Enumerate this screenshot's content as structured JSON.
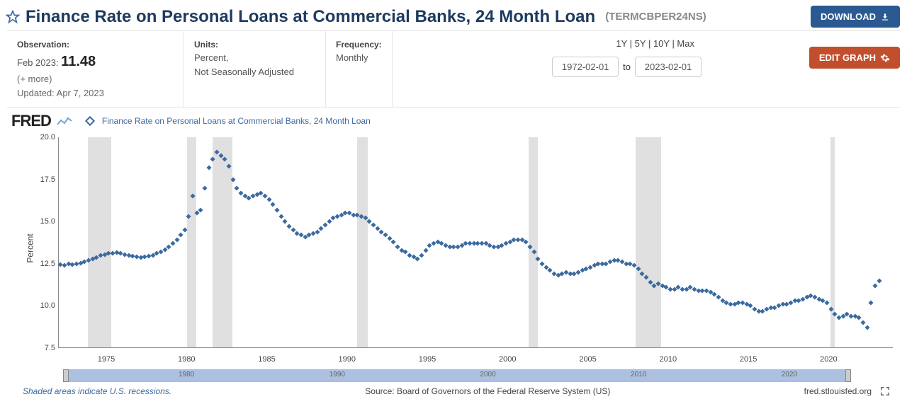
{
  "header": {
    "title": "Finance Rate on Personal Loans at Commercial Banks, 24 Month Loan",
    "series_id": "(TERMCBPER24NS)",
    "download_label": "DOWNLOAD"
  },
  "info": {
    "observation_label": "Observation:",
    "observation_date": "Feb 2023:",
    "observation_value": "11.48",
    "more_text": "(+ more)",
    "updated_text": "Updated: Apr 7, 2023",
    "units_label": "Units:",
    "units_line1": "Percent,",
    "units_line2": "Not Seasonally Adjusted",
    "frequency_label": "Frequency:",
    "frequency_value": "Monthly",
    "range_links": "1Y | 5Y | 10Y | Max",
    "date_from": "1972-02-01",
    "date_to": "2023-02-01",
    "to_label": "to",
    "edit_graph_label": "EDIT GRAPH"
  },
  "chart": {
    "type": "scatter",
    "legend_text": "Finance Rate on Personal Loans at Commercial Banks, 24 Month Loan",
    "ylabel": "Percent",
    "ylim": [
      7.5,
      20.0
    ],
    "ytick_step": 2.5,
    "yticks": [
      "7.5",
      "10.0",
      "12.5",
      "15.0",
      "17.5",
      "20.0"
    ],
    "xlim": [
      1972,
      2024
    ],
    "xticks": [
      1975,
      1980,
      1985,
      1990,
      1995,
      2000,
      2005,
      2010,
      2015,
      2020
    ],
    "marker_color": "#3b6aa0",
    "marker_style": "diamond",
    "marker_size": 5,
    "background_color": "#ffffff",
    "recession_color": "#e0e0e0",
    "axis_color": "#888888",
    "title_fontsize": 24,
    "label_fontsize": 12,
    "tick_fontsize": 11,
    "recessions": [
      [
        1973.83,
        1975.25
      ],
      [
        1980.0,
        1980.58
      ],
      [
        1981.58,
        1982.83
      ],
      [
        1990.58,
        1991.25
      ],
      [
        2001.25,
        2001.83
      ],
      [
        2007.92,
        2009.5
      ],
      [
        2020.08,
        2020.33
      ]
    ],
    "points": [
      [
        1972.1,
        12.45
      ],
      [
        1972.35,
        12.4
      ],
      [
        1972.6,
        12.5
      ],
      [
        1972.85,
        12.45
      ],
      [
        1973.1,
        12.5
      ],
      [
        1973.35,
        12.55
      ],
      [
        1973.6,
        12.6
      ],
      [
        1973.85,
        12.7
      ],
      [
        1974.1,
        12.8
      ],
      [
        1974.35,
        12.85
      ],
      [
        1974.6,
        13.0
      ],
      [
        1974.85,
        13.05
      ],
      [
        1975.1,
        13.1
      ],
      [
        1975.35,
        13.1
      ],
      [
        1975.6,
        13.15
      ],
      [
        1975.85,
        13.1
      ],
      [
        1976.1,
        13.05
      ],
      [
        1976.35,
        13.0
      ],
      [
        1976.6,
        12.95
      ],
      [
        1976.85,
        12.9
      ],
      [
        1977.1,
        12.85
      ],
      [
        1977.35,
        12.9
      ],
      [
        1977.6,
        12.95
      ],
      [
        1977.85,
        13.0
      ],
      [
        1978.1,
        13.1
      ],
      [
        1978.35,
        13.2
      ],
      [
        1978.6,
        13.35
      ],
      [
        1978.85,
        13.5
      ],
      [
        1979.1,
        13.7
      ],
      [
        1979.35,
        13.9
      ],
      [
        1979.6,
        14.2
      ],
      [
        1979.85,
        14.5
      ],
      [
        1980.1,
        15.3
      ],
      [
        1980.35,
        16.5
      ],
      [
        1980.6,
        15.5
      ],
      [
        1980.85,
        15.7
      ],
      [
        1981.1,
        17.0
      ],
      [
        1981.35,
        18.2
      ],
      [
        1981.6,
        18.7
      ],
      [
        1981.85,
        19.1
      ],
      [
        1982.1,
        18.9
      ],
      [
        1982.35,
        18.7
      ],
      [
        1982.6,
        18.3
      ],
      [
        1982.85,
        17.5
      ],
      [
        1983.1,
        17.0
      ],
      [
        1983.35,
        16.7
      ],
      [
        1983.6,
        16.5
      ],
      [
        1983.85,
        16.4
      ],
      [
        1984.1,
        16.5
      ],
      [
        1984.35,
        16.6
      ],
      [
        1984.6,
        16.7
      ],
      [
        1984.85,
        16.5
      ],
      [
        1985.1,
        16.3
      ],
      [
        1985.35,
        16.0
      ],
      [
        1985.6,
        15.7
      ],
      [
        1985.85,
        15.3
      ],
      [
        1986.1,
        15.0
      ],
      [
        1986.35,
        14.7
      ],
      [
        1986.6,
        14.5
      ],
      [
        1986.85,
        14.3
      ],
      [
        1987.1,
        14.2
      ],
      [
        1987.35,
        14.1
      ],
      [
        1987.6,
        14.2
      ],
      [
        1987.85,
        14.3
      ],
      [
        1988.1,
        14.4
      ],
      [
        1988.35,
        14.6
      ],
      [
        1988.6,
        14.8
      ],
      [
        1988.85,
        15.0
      ],
      [
        1989.1,
        15.2
      ],
      [
        1989.35,
        15.3
      ],
      [
        1989.6,
        15.4
      ],
      [
        1989.85,
        15.5
      ],
      [
        1990.1,
        15.5
      ],
      [
        1990.35,
        15.4
      ],
      [
        1990.6,
        15.4
      ],
      [
        1990.85,
        15.3
      ],
      [
        1991.1,
        15.2
      ],
      [
        1991.35,
        15.0
      ],
      [
        1991.6,
        14.8
      ],
      [
        1991.85,
        14.6
      ],
      [
        1992.1,
        14.4
      ],
      [
        1992.35,
        14.2
      ],
      [
        1992.6,
        14.0
      ],
      [
        1992.85,
        13.8
      ],
      [
        1993.1,
        13.5
      ],
      [
        1993.35,
        13.3
      ],
      [
        1993.6,
        13.2
      ],
      [
        1993.85,
        13.0
      ],
      [
        1994.1,
        12.9
      ],
      [
        1994.35,
        12.8
      ],
      [
        1994.6,
        13.0
      ],
      [
        1994.85,
        13.3
      ],
      [
        1995.1,
        13.6
      ],
      [
        1995.35,
        13.7
      ],
      [
        1995.6,
        13.8
      ],
      [
        1995.85,
        13.7
      ],
      [
        1996.1,
        13.6
      ],
      [
        1996.35,
        13.5
      ],
      [
        1996.6,
        13.5
      ],
      [
        1996.85,
        13.5
      ],
      [
        1997.1,
        13.6
      ],
      [
        1997.35,
        13.7
      ],
      [
        1997.6,
        13.7
      ],
      [
        1997.85,
        13.7
      ],
      [
        1998.1,
        13.7
      ],
      [
        1998.35,
        13.7
      ],
      [
        1998.6,
        13.7
      ],
      [
        1998.85,
        13.6
      ],
      [
        1999.1,
        13.5
      ],
      [
        1999.35,
        13.5
      ],
      [
        1999.6,
        13.6
      ],
      [
        1999.85,
        13.7
      ],
      [
        2000.1,
        13.8
      ],
      [
        2000.35,
        13.9
      ],
      [
        2000.6,
        13.9
      ],
      [
        2000.85,
        13.9
      ],
      [
        2001.1,
        13.8
      ],
      [
        2001.35,
        13.5
      ],
      [
        2001.6,
        13.2
      ],
      [
        2001.85,
        12.8
      ],
      [
        2002.1,
        12.5
      ],
      [
        2002.35,
        12.3
      ],
      [
        2002.6,
        12.1
      ],
      [
        2002.85,
        11.9
      ],
      [
        2003.1,
        11.8
      ],
      [
        2003.35,
        11.9
      ],
      [
        2003.6,
        12.0
      ],
      [
        2003.85,
        11.9
      ],
      [
        2004.1,
        11.9
      ],
      [
        2004.35,
        12.0
      ],
      [
        2004.6,
        12.1
      ],
      [
        2004.85,
        12.2
      ],
      [
        2005.1,
        12.3
      ],
      [
        2005.35,
        12.4
      ],
      [
        2005.6,
        12.5
      ],
      [
        2005.85,
        12.5
      ],
      [
        2006.1,
        12.5
      ],
      [
        2006.35,
        12.6
      ],
      [
        2006.6,
        12.7
      ],
      [
        2006.85,
        12.7
      ],
      [
        2007.1,
        12.6
      ],
      [
        2007.35,
        12.5
      ],
      [
        2007.6,
        12.5
      ],
      [
        2007.85,
        12.4
      ],
      [
        2008.1,
        12.2
      ],
      [
        2008.35,
        11.9
      ],
      [
        2008.6,
        11.7
      ],
      [
        2008.85,
        11.4
      ],
      [
        2009.1,
        11.2
      ],
      [
        2009.35,
        11.3
      ],
      [
        2009.6,
        11.2
      ],
      [
        2009.85,
        11.1
      ],
      [
        2010.1,
        11.0
      ],
      [
        2010.35,
        11.0
      ],
      [
        2010.6,
        11.1
      ],
      [
        2010.85,
        11.0
      ],
      [
        2011.1,
        11.0
      ],
      [
        2011.35,
        11.1
      ],
      [
        2011.6,
        11.0
      ],
      [
        2011.85,
        10.9
      ],
      [
        2012.1,
        10.9
      ],
      [
        2012.35,
        10.9
      ],
      [
        2012.6,
        10.8
      ],
      [
        2012.85,
        10.7
      ],
      [
        2013.1,
        10.5
      ],
      [
        2013.35,
        10.3
      ],
      [
        2013.6,
        10.2
      ],
      [
        2013.85,
        10.1
      ],
      [
        2014.1,
        10.1
      ],
      [
        2014.35,
        10.2
      ],
      [
        2014.6,
        10.2
      ],
      [
        2014.85,
        10.1
      ],
      [
        2015.1,
        10.0
      ],
      [
        2015.35,
        9.8
      ],
      [
        2015.6,
        9.7
      ],
      [
        2015.85,
        9.7
      ],
      [
        2016.1,
        9.8
      ],
      [
        2016.35,
        9.9
      ],
      [
        2016.6,
        9.9
      ],
      [
        2016.85,
        10.0
      ],
      [
        2017.1,
        10.1
      ],
      [
        2017.35,
        10.1
      ],
      [
        2017.6,
        10.2
      ],
      [
        2017.85,
        10.3
      ],
      [
        2018.1,
        10.3
      ],
      [
        2018.35,
        10.4
      ],
      [
        2018.6,
        10.5
      ],
      [
        2018.85,
        10.6
      ],
      [
        2019.1,
        10.5
      ],
      [
        2019.35,
        10.4
      ],
      [
        2019.6,
        10.3
      ],
      [
        2019.85,
        10.2
      ],
      [
        2020.1,
        9.8
      ],
      [
        2020.35,
        9.5
      ],
      [
        2020.6,
        9.3
      ],
      [
        2020.85,
        9.4
      ],
      [
        2021.1,
        9.5
      ],
      [
        2021.35,
        9.4
      ],
      [
        2021.6,
        9.4
      ],
      [
        2021.85,
        9.3
      ],
      [
        2022.1,
        9.0
      ],
      [
        2022.35,
        8.7
      ],
      [
        2022.6,
        10.2
      ],
      [
        2022.85,
        11.2
      ],
      [
        2023.1,
        11.48
      ]
    ],
    "scroll_ticks": [
      1980,
      1990,
      2000,
      2010,
      2020
    ],
    "scroll_rail_color": "#acc0e0"
  },
  "footer": {
    "note": "Shaded areas indicate U.S. recessions.",
    "source": "Source: Board of Governors of the Federal Reserve System (US)",
    "site": "fred.stlouisfed.org"
  }
}
